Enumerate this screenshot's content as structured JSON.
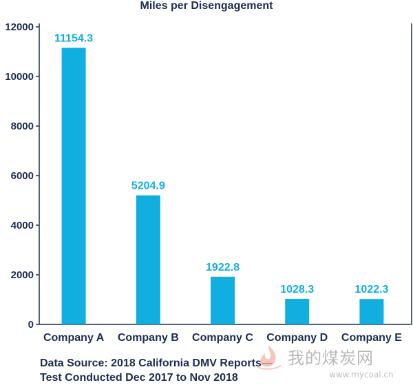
{
  "chart_data": {
    "type": "bar",
    "title": "Miles per Disengagement",
    "categories": [
      "Company A",
      "Company B",
      "Company C",
      "Company D",
      "Company E"
    ],
    "values": [
      11154.3,
      5204.9,
      1922.8,
      1028.3,
      1022.3
    ],
    "data_labels": [
      "11154.3",
      "5204.9",
      "1922.8",
      "1028.3",
      "1022.3"
    ],
    "y_ticks": [
      0,
      2000,
      4000,
      6000,
      8000,
      10000,
      12000
    ],
    "ylim": [
      0,
      12000
    ],
    "xlabel": "",
    "ylabel": "",
    "grid": false,
    "bar_color": "#11aee0",
    "label_color": "#11aee0",
    "text_color": "#1d2d4e"
  },
  "source": {
    "line1": "Data Source: 2018 California DMV Reports—",
    "line2": "Test Conducted Dec 2017 to Nov 2018"
  },
  "watermark": {
    "logo_icon": "flame-logo-icon",
    "cn_text": "我的煤炭网",
    "url": "www.mycoal.cn"
  }
}
